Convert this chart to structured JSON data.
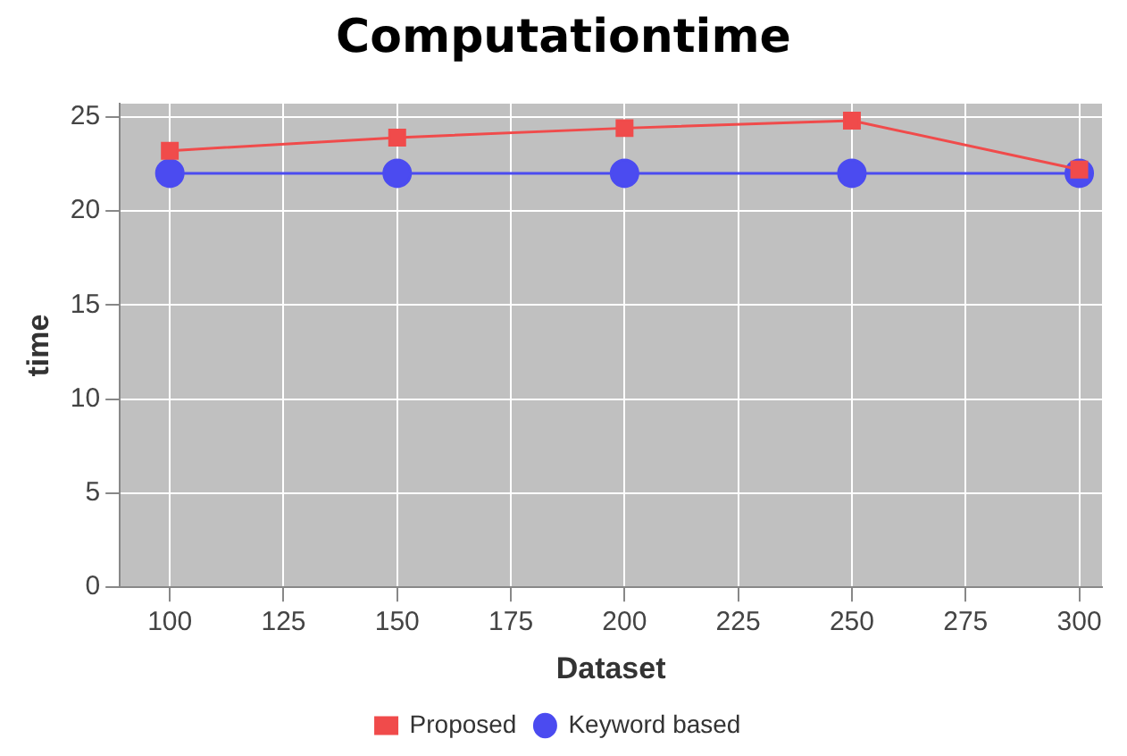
{
  "chart_data": {
    "type": "line",
    "title": "Computationtime",
    "xlabel": "Dataset",
    "ylabel": "time",
    "x": [
      100,
      150,
      200,
      250,
      300
    ],
    "series": [
      {
        "name": "Proposed",
        "color": "#f04b4b",
        "marker": "square",
        "values": [
          23.2,
          23.9,
          24.4,
          24.8,
          22.2
        ]
      },
      {
        "name": "Keyword based",
        "color": "#4b4bf0",
        "marker": "circle",
        "values": [
          22,
          22,
          22,
          22,
          22
        ]
      }
    ],
    "xlim": [
      89,
      305
    ],
    "xticks": [
      100,
      125,
      150,
      175,
      200,
      225,
      250,
      275,
      300
    ],
    "ylim": [
      0,
      25.7
    ],
    "yticks": [
      0,
      5,
      10,
      15,
      20,
      25
    ],
    "grid": true,
    "legend": "bottom",
    "line_style": "solid"
  }
}
